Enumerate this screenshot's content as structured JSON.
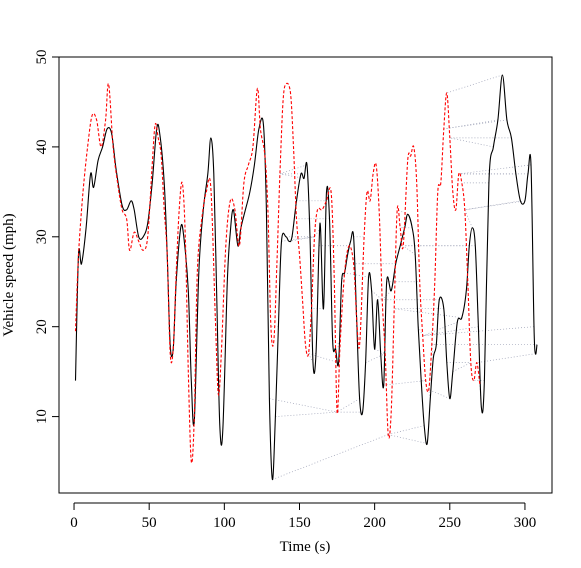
{
  "chart_data": {
    "type": "line",
    "title": "",
    "xlabel": "Time (s)",
    "ylabel": "Vehicle speed (mph)",
    "xlim": [
      -10,
      318
    ],
    "ylim": [
      1.5,
      50
    ],
    "xticks": [
      0,
      50,
      100,
      150,
      200,
      250,
      300
    ],
    "yticks": [
      10,
      20,
      30,
      40,
      50
    ],
    "grid": false,
    "legend": "none",
    "series": [
      {
        "color": "#000000",
        "linestyle": "solid",
        "points": [
          [
            1,
            14
          ],
          [
            3,
            28
          ],
          [
            5,
            27
          ],
          [
            8,
            31
          ],
          [
            11,
            37
          ],
          [
            13,
            35.5
          ],
          [
            16,
            38.5
          ],
          [
            19,
            40
          ],
          [
            22,
            42
          ],
          [
            25,
            41.5
          ],
          [
            28,
            37.5
          ],
          [
            32,
            33.5
          ],
          [
            35,
            33
          ],
          [
            38,
            34
          ],
          [
            40,
            33
          ],
          [
            43,
            30
          ],
          [
            46,
            30
          ],
          [
            49,
            31.5
          ],
          [
            52,
            36
          ],
          [
            55,
            42
          ],
          [
            57,
            41.5
          ],
          [
            60,
            36
          ],
          [
            62,
            28
          ],
          [
            64,
            18
          ],
          [
            66,
            17.5
          ],
          [
            68,
            25
          ],
          [
            71,
            31
          ],
          [
            73,
            30
          ],
          [
            76,
            24
          ],
          [
            78,
            14
          ],
          [
            80,
            9.5
          ],
          [
            83,
            26
          ],
          [
            86,
            33
          ],
          [
            89,
            37
          ],
          [
            91,
            41
          ],
          [
            93,
            37
          ],
          [
            95,
            23
          ],
          [
            97,
            9
          ],
          [
            99,
            8.5
          ],
          [
            102,
            25
          ],
          [
            104,
            30.5
          ],
          [
            106,
            33
          ],
          [
            109,
            29
          ],
          [
            111,
            31
          ],
          [
            114,
            33
          ],
          [
            117,
            35
          ],
          [
            120,
            38
          ],
          [
            123,
            42
          ],
          [
            126,
            42.5
          ],
          [
            128,
            33
          ],
          [
            130,
            12
          ],
          [
            132,
            3
          ],
          [
            134,
            10
          ],
          [
            136,
            20
          ],
          [
            138,
            29.5
          ],
          [
            141,
            30
          ],
          [
            143,
            29.5
          ],
          [
            145,
            30
          ],
          [
            148,
            34
          ],
          [
            151,
            37
          ],
          [
            153,
            36.5
          ],
          [
            155,
            38
          ],
          [
            157,
            30
          ],
          [
            159,
            16
          ],
          [
            161,
            17
          ],
          [
            163,
            29
          ],
          [
            164,
            31
          ],
          [
            166,
            22
          ],
          [
            168,
            35
          ],
          [
            170,
            32
          ],
          [
            172,
            18.5
          ],
          [
            174,
            17.5
          ],
          [
            176,
            16
          ],
          [
            178,
            25
          ],
          [
            180,
            26
          ],
          [
            182,
            28
          ],
          [
            184,
            29.5
          ],
          [
            186,
            30
          ],
          [
            188,
            21
          ],
          [
            190,
            12
          ],
          [
            192,
            10.5
          ],
          [
            194,
            16
          ],
          [
            196,
            25.5
          ],
          [
            198,
            24
          ],
          [
            200,
            17.5
          ],
          [
            202,
            23
          ],
          [
            204,
            17
          ],
          [
            206,
            13.5
          ],
          [
            208,
            25
          ],
          [
            211,
            24
          ],
          [
            214,
            27
          ],
          [
            217,
            29
          ],
          [
            220,
            31
          ],
          [
            222,
            32.5
          ],
          [
            225,
            31
          ],
          [
            227,
            28
          ],
          [
            229,
            20
          ],
          [
            231,
            14
          ],
          [
            233,
            9
          ],
          [
            235,
            7
          ],
          [
            237,
            12
          ],
          [
            239,
            16.5
          ],
          [
            241,
            18
          ],
          [
            243,
            23
          ],
          [
            246,
            22
          ],
          [
            248,
            16
          ],
          [
            250,
            12
          ],
          [
            252,
            15
          ],
          [
            255,
            20.5
          ],
          [
            258,
            21
          ],
          [
            261,
            24
          ],
          [
            263,
            29
          ],
          [
            265,
            31
          ],
          [
            267,
            29
          ],
          [
            269,
            20
          ],
          [
            271,
            11
          ],
          [
            273,
            14
          ],
          [
            276,
            36
          ],
          [
            279,
            40
          ],
          [
            282,
            43
          ],
          [
            285,
            48
          ],
          [
            288,
            43
          ],
          [
            291,
            41
          ],
          [
            294,
            37
          ],
          [
            297,
            34
          ],
          [
            300,
            34
          ],
          [
            302,
            37
          ],
          [
            304,
            38
          ],
          [
            306,
            20
          ],
          [
            307,
            17
          ],
          [
            308,
            18
          ]
        ]
      },
      {
        "color": "#ff0000",
        "linestyle": "dashed",
        "points": [
          [
            1,
            19.5
          ],
          [
            3,
            28
          ],
          [
            6,
            35
          ],
          [
            9,
            40
          ],
          [
            12,
            43.5
          ],
          [
            15,
            43
          ],
          [
            18,
            40
          ],
          [
            21,
            43
          ],
          [
            23,
            47
          ],
          [
            26,
            40
          ],
          [
            29,
            36
          ],
          [
            32,
            33
          ],
          [
            35,
            32
          ],
          [
            37,
            28.5
          ],
          [
            40,
            30.5
          ],
          [
            43,
            29.5
          ],
          [
            46,
            28.5
          ],
          [
            49,
            30
          ],
          [
            52,
            38
          ],
          [
            54,
            42.5
          ],
          [
            56,
            41
          ],
          [
            58,
            39
          ],
          [
            60,
            33
          ],
          [
            62,
            28
          ],
          [
            64,
            17
          ],
          [
            66,
            17.5
          ],
          [
            68,
            26
          ],
          [
            70,
            33
          ],
          [
            72,
            36
          ],
          [
            74,
            30
          ],
          [
            76,
            15
          ],
          [
            78,
            5
          ],
          [
            80,
            10
          ],
          [
            82,
            26
          ],
          [
            85,
            32
          ],
          [
            88,
            35
          ],
          [
            91,
            35.5
          ],
          [
            94,
            21
          ],
          [
            96,
            12.5
          ],
          [
            98,
            17
          ],
          [
            101,
            29
          ],
          [
            104,
            34
          ],
          [
            107,
            33
          ],
          [
            110,
            29
          ],
          [
            113,
            36
          ],
          [
            116,
            38
          ],
          [
            119,
            40
          ],
          [
            122,
            46.5
          ],
          [
            124,
            42
          ],
          [
            127,
            39
          ],
          [
            129,
            33
          ],
          [
            131,
            20
          ],
          [
            133,
            18.5
          ],
          [
            135,
            27
          ],
          [
            137,
            37
          ],
          [
            139,
            45
          ],
          [
            141,
            47
          ],
          [
            144,
            46
          ],
          [
            146,
            40
          ],
          [
            148,
            32
          ],
          [
            150,
            28
          ],
          [
            152,
            23
          ],
          [
            154,
            18
          ],
          [
            156,
            17
          ],
          [
            158,
            22
          ],
          [
            160,
            30
          ],
          [
            162,
            33
          ],
          [
            165,
            33
          ],
          [
            168,
            34
          ],
          [
            171,
            35
          ],
          [
            173,
            26
          ],
          [
            175,
            10.5
          ],
          [
            177,
            18
          ],
          [
            180,
            26
          ],
          [
            183,
            29
          ],
          [
            186,
            27
          ],
          [
            188,
            21
          ],
          [
            190,
            18
          ],
          [
            193,
            30
          ],
          [
            195,
            35
          ],
          [
            197,
            34
          ],
          [
            199,
            37
          ],
          [
            201,
            38
          ],
          [
            203,
            33
          ],
          [
            205,
            23
          ],
          [
            207,
            17
          ],
          [
            209,
            8
          ],
          [
            211,
            10.5
          ],
          [
            213,
            22
          ],
          [
            215,
            33
          ],
          [
            217,
            31
          ],
          [
            219,
            29
          ],
          [
            222,
            38.5
          ],
          [
            224,
            39
          ],
          [
            226,
            40
          ],
          [
            228,
            36
          ],
          [
            230,
            25
          ],
          [
            232,
            19
          ],
          [
            234,
            14
          ],
          [
            236,
            13
          ],
          [
            238,
            18
          ],
          [
            240,
            25
          ],
          [
            242,
            35
          ],
          [
            244,
            36
          ],
          [
            246,
            42
          ],
          [
            248,
            46
          ],
          [
            250,
            41
          ],
          [
            252,
            35
          ],
          [
            254,
            33
          ],
          [
            256,
            37
          ],
          [
            258,
            36
          ],
          [
            260,
            33
          ],
          [
            262,
            25
          ],
          [
            264,
            16
          ],
          [
            266,
            14
          ],
          [
            268,
            16
          ],
          [
            270,
            13.5
          ]
        ]
      }
    ]
  }
}
